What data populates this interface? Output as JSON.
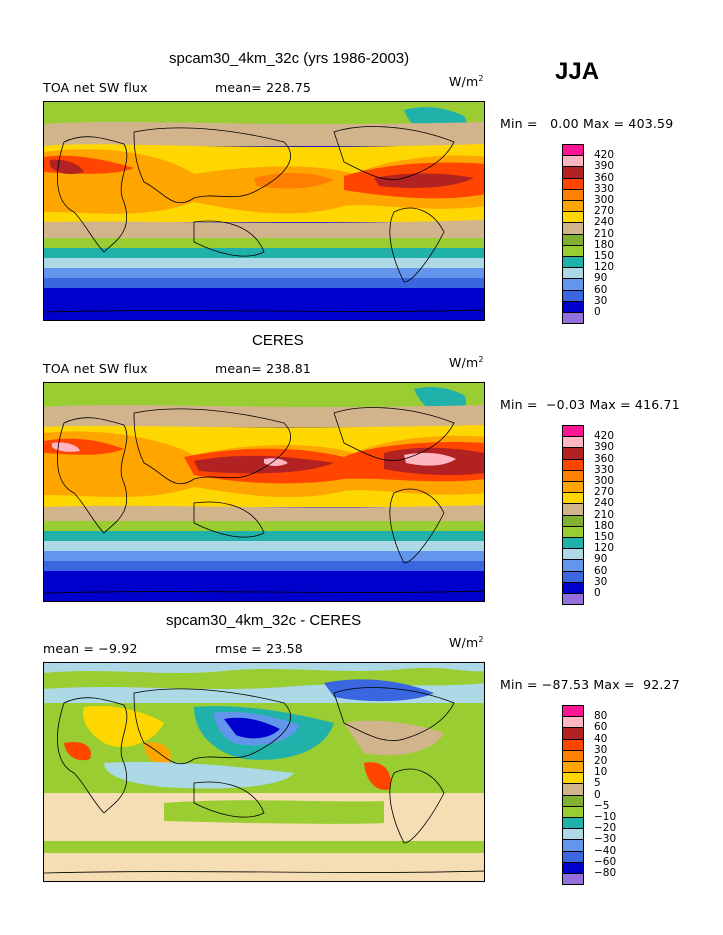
{
  "season": "JJA",
  "colors": [
    "#9370DB",
    "#0000CD",
    "#3A66E0",
    "#6495ED",
    "#ADD8E6",
    "#20B2AA",
    "#9ACD32",
    "#7FB030",
    "#D2B48C",
    "#FFD700",
    "#FFA500",
    "#FF7F00",
    "#FF4500",
    "#B22222",
    "#FFB6C1",
    "#FF1493"
  ],
  "panels": [
    {
      "title": "spcam30_4km_32c (yrs 1986-2003)",
      "left_label": "TOA net SW flux",
      "stat_label": "mean=",
      "stat_value": "228.75",
      "extra_label": "",
      "extra_value": "",
      "units": "W/m",
      "units_exp": "2",
      "minmax": "Min =   0.00 Max = 403.59",
      "levels": [
        "0",
        "30",
        "60",
        "90",
        "120",
        "150",
        "180",
        "210",
        "240",
        "270",
        "300",
        "330",
        "360",
        "390",
        "420"
      ]
    },
    {
      "title": "CERES",
      "left_label": "TOA net SW flux",
      "stat_label": "mean=",
      "stat_value": "238.81",
      "extra_label": "",
      "extra_value": "",
      "units": "W/m",
      "units_exp": "2",
      "minmax": "Min =  −0.03 Max = 416.71",
      "levels": [
        "0",
        "30",
        "60",
        "90",
        "120",
        "150",
        "180",
        "210",
        "240",
        "270",
        "300",
        "330",
        "360",
        "390",
        "420"
      ]
    },
    {
      "title": "spcam30_4km_32c - CERES",
      "left_label": "mean =",
      "stat_label": "",
      "stat_value": "−9.92",
      "extra_label": "rmse =",
      "extra_value": "23.58",
      "units": "W/m",
      "units_exp": "2",
      "minmax": "Min = −87.53 Max =  92.27",
      "levels": [
        "−80",
        "−60",
        "−40",
        "−30",
        "−20",
        "−10",
        "−5",
        "0",
        "5",
        "10",
        "20",
        "30",
        "40",
        "60",
        "80"
      ]
    }
  ],
  "chart_data": [
    {
      "type": "heatmap",
      "title": "spcam30_4km_32c (yrs 1986-2003)",
      "variable": "TOA net SW flux",
      "mean": 228.75,
      "min": 0.0,
      "max": 403.59,
      "units": "W/m2",
      "contour_levels": [
        0,
        30,
        60,
        90,
        120,
        150,
        180,
        210,
        240,
        270,
        300,
        330,
        360,
        390,
        420
      ]
    },
    {
      "type": "heatmap",
      "title": "CERES",
      "variable": "TOA net SW flux",
      "mean": 238.81,
      "min": -0.03,
      "max": 416.71,
      "units": "W/m2",
      "contour_levels": [
        0,
        30,
        60,
        90,
        120,
        150,
        180,
        210,
        240,
        270,
        300,
        330,
        360,
        390,
        420
      ]
    },
    {
      "type": "heatmap",
      "title": "spcam30_4km_32c - CERES",
      "mean": -9.92,
      "rmse": 23.58,
      "min": -87.53,
      "max": 92.27,
      "units": "W/m2",
      "contour_levels": [
        -80,
        -60,
        -40,
        -30,
        -20,
        -10,
        -5,
        0,
        5,
        10,
        20,
        30,
        40,
        60,
        80
      ]
    }
  ]
}
